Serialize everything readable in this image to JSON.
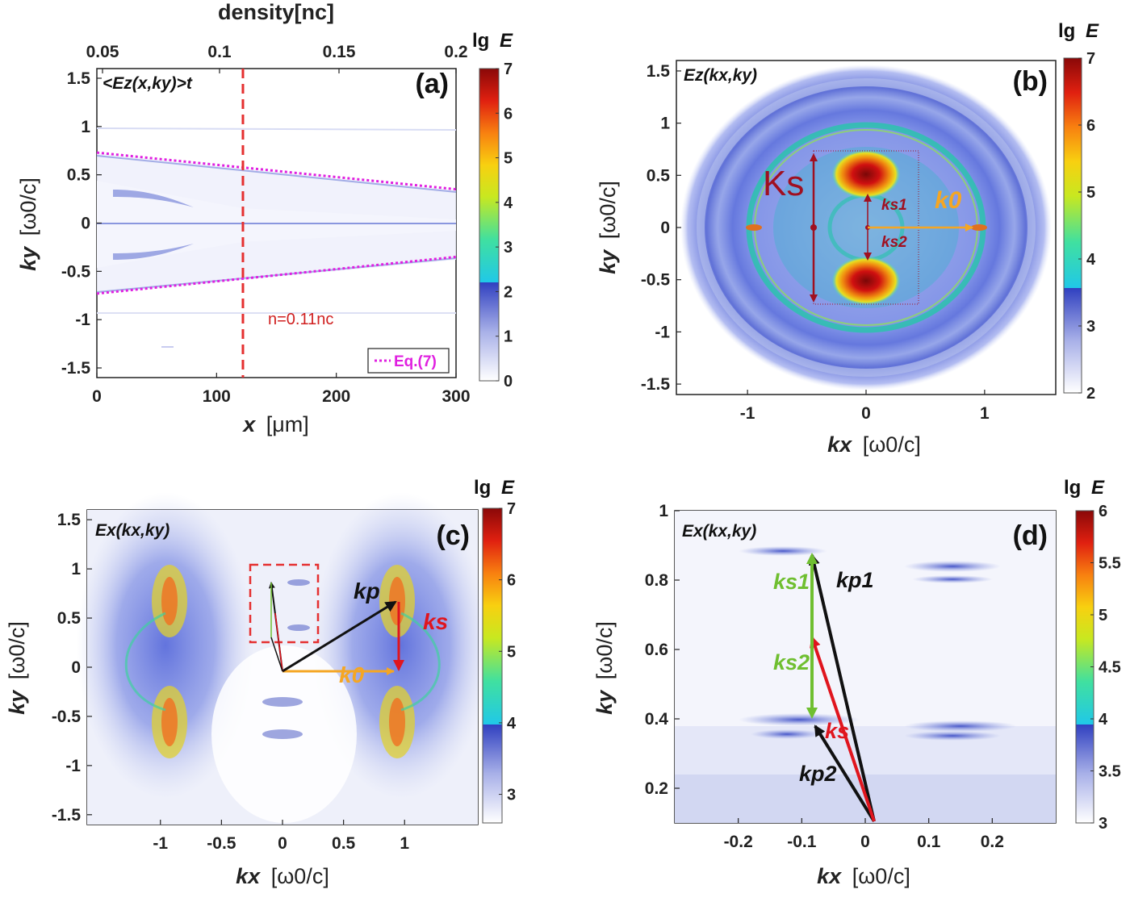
{
  "colorbar_title": {
    "prefix": "lg",
    "var": "E"
  },
  "colors": {
    "dashed_red": "#e53030",
    "magenta": "#e020e0",
    "orange": "#f5a623",
    "dark_red": "#a01020",
    "green": "#6fbf30",
    "red": "#e0151e",
    "black": "#111111"
  },
  "panels": [
    {
      "id": "a",
      "letter": "(a)",
      "field": "<Ez(x,ky)>t",
      "xlabel_main": "x",
      "xlabel_unit": "[μm]",
      "ylabel_main": "ky",
      "ylabel_unit": "[ω0/c]",
      "top_axis_label": "density[nc]",
      "top_ticks": [
        "0.05",
        "0.1",
        "0.15",
        "0.2"
      ],
      "annotation": "n=0.11nc",
      "legend": "Eq.(7)",
      "cb_ticks": [
        "7",
        "6",
        "5",
        "4",
        "3",
        "2",
        "1",
        "0"
      ]
    },
    {
      "id": "b",
      "letter": "(b)",
      "field": "Ez(kx,ky)",
      "xlabel_main": "kx",
      "xlabel_unit": "[ω0/c]",
      "ylabel_main": "ky",
      "ylabel_unit": "[ω0/c]",
      "labels": {
        "Ks": "Ks",
        "ks1": "ks1",
        "ks2": "ks2",
        "k0": "k0"
      },
      "cb_ticks": [
        "7",
        "6",
        "5",
        "4",
        "3",
        "2"
      ]
    },
    {
      "id": "c",
      "letter": "(c)",
      "field": "Ex(kx,ky)",
      "xlabel_main": "kx",
      "xlabel_unit": "[ω0/c]",
      "ylabel_main": "ky",
      "ylabel_unit": "[ω0/c]",
      "labels": {
        "kp": "kp",
        "ks": "ks",
        "k0": "k0"
      },
      "cb_ticks": [
        "7",
        "6",
        "5",
        "4",
        "3"
      ]
    },
    {
      "id": "d",
      "letter": "(d)",
      "field": "Ex(kx,ky)",
      "xlabel_main": "kx",
      "xlabel_unit": "[ω0/c]",
      "ylabel_main": "ky",
      "ylabel_unit": "[ω0/c]",
      "labels": {
        "ks1": "ks1",
        "ks2": "ks2",
        "ks": "ks",
        "kp1": "kp1",
        "kp2": "kp2"
      },
      "cb_ticks": [
        "6",
        "5.5",
        "5",
        "4.5",
        "4",
        "3.5",
        "3"
      ]
    }
  ],
  "chart_data": [
    {
      "type": "heatmap",
      "panel": "a",
      "x_range": [
        0,
        300
      ],
      "y_range": [
        -1.6,
        1.6
      ],
      "x_ticks": [
        0,
        100,
        200,
        300
      ],
      "y_ticks": [
        1.5,
        1,
        0.5,
        0,
        -0.5,
        -1,
        -1.5
      ],
      "top_ticks": [
        0.05,
        0.1,
        0.15,
        0.2
      ],
      "colorbar_range": [
        0,
        7
      ],
      "vertical_line_x": 122,
      "eq7_curve": {
        "x": [
          0,
          300
        ],
        "y_upper": [
          0.73,
          0.35
        ],
        "y_lower": [
          -0.73,
          -0.35
        ]
      }
    },
    {
      "type": "heatmap",
      "panel": "b",
      "x_range": [
        -1.6,
        1.6
      ],
      "y_range": [
        -1.6,
        1.6
      ],
      "x_ticks": [
        -1,
        0,
        1
      ],
      "y_ticks": [
        1.5,
        1,
        0.5,
        0,
        -0.5,
        -1,
        -1.5
      ],
      "colorbar_range": [
        2,
        7
      ]
    },
    {
      "type": "heatmap",
      "panel": "c",
      "x_range": [
        -1.6,
        1.6
      ],
      "y_range": [
        -1.6,
        1.6
      ],
      "x_ticks": [
        -1,
        -0.5,
        0,
        0.5,
        1
      ],
      "y_ticks": [
        1.5,
        1,
        0.5,
        0,
        -0.5,
        -1,
        -1.5
      ],
      "colorbar_range": [
        2.6,
        7
      ]
    },
    {
      "type": "heatmap",
      "panel": "d",
      "x_range": [
        -0.3,
        0.3
      ],
      "y_range": [
        0.1,
        1.0
      ],
      "x_ticks": [
        -0.2,
        -0.1,
        0,
        0.1,
        0.2
      ],
      "y_ticks": [
        1,
        0.8,
        0.6,
        0.4,
        0.2
      ],
      "colorbar_range": [
        3,
        6
      ]
    }
  ]
}
